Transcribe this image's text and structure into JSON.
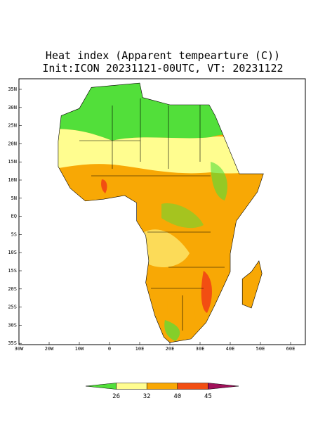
{
  "title": "Heat index (Apparent tempearture (C))",
  "subtitle": "Init:ICON 20231121-00UTC, VT: 20231122",
  "lat_labels": [
    "35N",
    "30N",
    "25N",
    "20N",
    "15N",
    "10N",
    "5N",
    "EQ",
    "5S",
    "10S",
    "15S",
    "20S",
    "25S",
    "30S",
    "35S"
  ],
  "lon_labels": [
    "30W",
    "20W",
    "10W",
    "0",
    "10E",
    "20E",
    "30E",
    "40E",
    "50E",
    "60E"
  ],
  "colorbar": {
    "levels": [
      26,
      32,
      40,
      45
    ],
    "colors": [
      "#52df3a",
      "#fffd8f",
      "#f8a805",
      "#f24e12",
      "#a0105a"
    ]
  }
}
